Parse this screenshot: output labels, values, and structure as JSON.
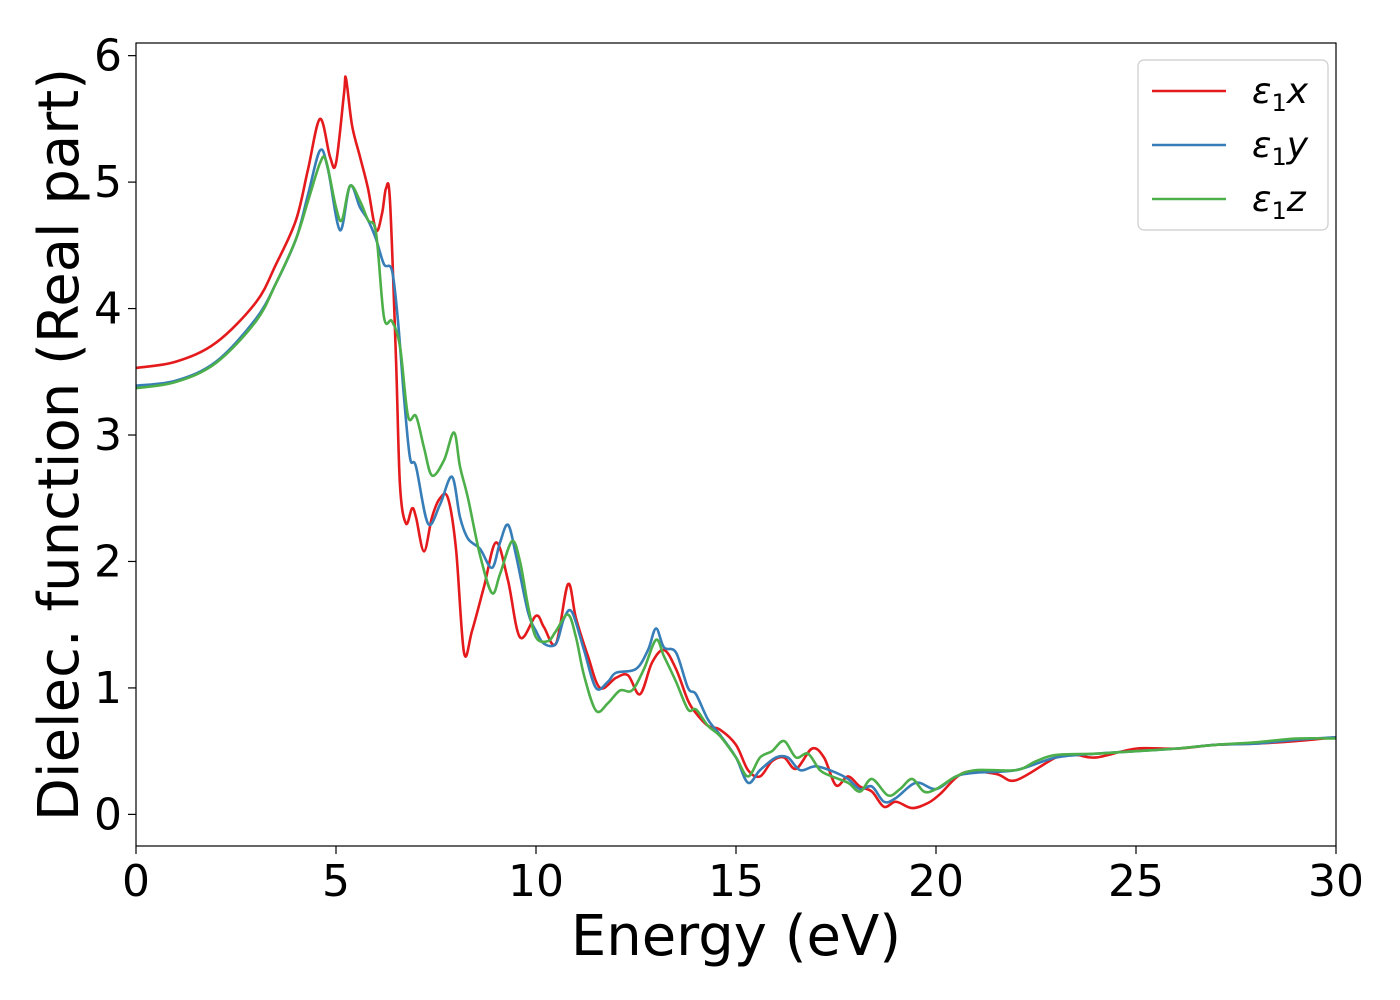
{
  "chart_data": {
    "type": "line",
    "xlabel": "Energy (eV)",
    "ylabel": "Dielec. function (Real part)",
    "xlim": [
      0,
      30
    ],
    "ylim": [
      -0.25,
      6.1
    ],
    "x_ticks": [
      0,
      5,
      10,
      15,
      20,
      25,
      30
    ],
    "y_ticks": [
      0,
      1,
      2,
      3,
      4,
      5,
      6
    ],
    "grid": false,
    "legend_position": "top-right",
    "series": [
      {
        "name": "ε₁x",
        "legend": {
          "base": "ε",
          "sub": "1",
          "axis": "x"
        },
        "color": "#e41a1c",
        "points": [
          [
            0,
            3.53
          ],
          [
            1,
            3.58
          ],
          [
            2,
            3.73
          ],
          [
            3,
            4.05
          ],
          [
            3.5,
            4.35
          ],
          [
            4,
            4.7
          ],
          [
            4.3,
            5.1
          ],
          [
            4.6,
            5.5
          ],
          [
            4.85,
            5.2
          ],
          [
            5.0,
            5.15
          ],
          [
            5.2,
            5.7
          ],
          [
            5.25,
            5.82
          ],
          [
            5.4,
            5.45
          ],
          [
            5.6,
            5.2
          ],
          [
            5.8,
            4.95
          ],
          [
            6.0,
            4.62
          ],
          [
            6.15,
            4.75
          ],
          [
            6.25,
            4.95
          ],
          [
            6.35,
            4.85
          ],
          [
            6.5,
            3.6
          ],
          [
            6.6,
            2.6
          ],
          [
            6.75,
            2.3
          ],
          [
            6.9,
            2.42
          ],
          [
            7.0,
            2.35
          ],
          [
            7.2,
            2.08
          ],
          [
            7.4,
            2.35
          ],
          [
            7.6,
            2.5
          ],
          [
            7.8,
            2.5
          ],
          [
            8.0,
            2.1
          ],
          [
            8.2,
            1.28
          ],
          [
            8.4,
            1.45
          ],
          [
            8.7,
            1.8
          ],
          [
            9.0,
            2.15
          ],
          [
            9.3,
            1.85
          ],
          [
            9.6,
            1.4
          ],
          [
            10.0,
            1.57
          ],
          [
            10.2,
            1.48
          ],
          [
            10.5,
            1.35
          ],
          [
            10.8,
            1.82
          ],
          [
            11.0,
            1.55
          ],
          [
            11.3,
            1.25
          ],
          [
            11.6,
            1.0
          ],
          [
            12.0,
            1.08
          ],
          [
            12.3,
            1.1
          ],
          [
            12.6,
            0.95
          ],
          [
            12.9,
            1.2
          ],
          [
            13.2,
            1.3
          ],
          [
            13.5,
            1.15
          ],
          [
            13.8,
            0.9
          ],
          [
            14.0,
            0.8
          ],
          [
            14.3,
            0.7
          ],
          [
            14.6,
            0.67
          ],
          [
            15.0,
            0.55
          ],
          [
            15.3,
            0.35
          ],
          [
            15.6,
            0.3
          ],
          [
            15.9,
            0.42
          ],
          [
            16.2,
            0.45
          ],
          [
            16.5,
            0.36
          ],
          [
            16.9,
            0.52
          ],
          [
            17.2,
            0.45
          ],
          [
            17.5,
            0.23
          ],
          [
            17.8,
            0.3
          ],
          [
            18.1,
            0.22
          ],
          [
            18.4,
            0.18
          ],
          [
            18.7,
            0.06
          ],
          [
            19.0,
            0.1
          ],
          [
            19.4,
            0.05
          ],
          [
            19.8,
            0.09
          ],
          [
            20.1,
            0.16
          ],
          [
            20.7,
            0.33
          ],
          [
            21.5,
            0.32
          ],
          [
            22.0,
            0.27
          ],
          [
            23.0,
            0.45
          ],
          [
            23.5,
            0.47
          ],
          [
            24.0,
            0.45
          ],
          [
            25.0,
            0.52
          ],
          [
            26.0,
            0.52
          ],
          [
            27.0,
            0.55
          ],
          [
            28.0,
            0.56
          ],
          [
            29.0,
            0.58
          ],
          [
            30.0,
            0.61
          ]
        ]
      },
      {
        "name": "ε₁y",
        "legend": {
          "base": "ε",
          "sub": "1",
          "axis": "y"
        },
        "color": "#377eb8",
        "points": [
          [
            0,
            3.39
          ],
          [
            1,
            3.43
          ],
          [
            2,
            3.58
          ],
          [
            3,
            3.92
          ],
          [
            3.5,
            4.2
          ],
          [
            4,
            4.55
          ],
          [
            4.3,
            4.9
          ],
          [
            4.6,
            5.25
          ],
          [
            4.8,
            5.1
          ],
          [
            5.1,
            4.62
          ],
          [
            5.35,
            4.97
          ],
          [
            5.6,
            4.8
          ],
          [
            5.8,
            4.7
          ],
          [
            6.0,
            4.55
          ],
          [
            6.2,
            4.35
          ],
          [
            6.4,
            4.3
          ],
          [
            6.55,
            3.9
          ],
          [
            6.7,
            3.3
          ],
          [
            6.85,
            2.82
          ],
          [
            7.0,
            2.75
          ],
          [
            7.3,
            2.3
          ],
          [
            7.6,
            2.45
          ],
          [
            7.9,
            2.67
          ],
          [
            8.1,
            2.35
          ],
          [
            8.3,
            2.18
          ],
          [
            8.6,
            2.1
          ],
          [
            8.9,
            1.95
          ],
          [
            9.1,
            2.15
          ],
          [
            9.3,
            2.29
          ],
          [
            9.5,
            2.05
          ],
          [
            9.8,
            1.6
          ],
          [
            10.0,
            1.45
          ],
          [
            10.2,
            1.35
          ],
          [
            10.5,
            1.35
          ],
          [
            10.7,
            1.55
          ],
          [
            10.9,
            1.6
          ],
          [
            11.2,
            1.3
          ],
          [
            11.5,
            1.0
          ],
          [
            11.8,
            1.05
          ],
          [
            12.0,
            1.12
          ],
          [
            12.5,
            1.15
          ],
          [
            12.8,
            1.3
          ],
          [
            13.0,
            1.47
          ],
          [
            13.2,
            1.32
          ],
          [
            13.5,
            1.28
          ],
          [
            13.8,
            1.0
          ],
          [
            14.0,
            0.95
          ],
          [
            14.3,
            0.75
          ],
          [
            14.6,
            0.63
          ],
          [
            15.0,
            0.45
          ],
          [
            15.3,
            0.25
          ],
          [
            15.6,
            0.35
          ],
          [
            16.0,
            0.45
          ],
          [
            16.3,
            0.45
          ],
          [
            16.6,
            0.35
          ],
          [
            17.0,
            0.38
          ],
          [
            17.5,
            0.33
          ],
          [
            17.8,
            0.28
          ],
          [
            18.1,
            0.2
          ],
          [
            18.4,
            0.22
          ],
          [
            18.7,
            0.1
          ],
          [
            19.0,
            0.13
          ],
          [
            19.5,
            0.25
          ],
          [
            20.0,
            0.2
          ],
          [
            20.5,
            0.3
          ],
          [
            21.0,
            0.33
          ],
          [
            22.0,
            0.35
          ],
          [
            23.0,
            0.45
          ],
          [
            24.0,
            0.48
          ],
          [
            25.0,
            0.5
          ],
          [
            26.0,
            0.52
          ],
          [
            27.0,
            0.55
          ],
          [
            28.0,
            0.56
          ],
          [
            29.0,
            0.59
          ],
          [
            30.0,
            0.61
          ]
        ]
      },
      {
        "name": "ε₁z",
        "legend": {
          "base": "ε",
          "sub": "1",
          "axis": "z"
        },
        "color": "#4daf4a",
        "points": [
          [
            0,
            3.37
          ],
          [
            1,
            3.42
          ],
          [
            2,
            3.57
          ],
          [
            3,
            3.9
          ],
          [
            3.5,
            4.2
          ],
          [
            4,
            4.55
          ],
          [
            4.3,
            4.85
          ],
          [
            4.6,
            5.15
          ],
          [
            4.75,
            5.17
          ],
          [
            5.0,
            4.8
          ],
          [
            5.15,
            4.7
          ],
          [
            5.35,
            4.97
          ],
          [
            5.6,
            4.85
          ],
          [
            5.8,
            4.7
          ],
          [
            6.0,
            4.6
          ],
          [
            6.2,
            3.93
          ],
          [
            6.4,
            3.9
          ],
          [
            6.6,
            3.7
          ],
          [
            6.8,
            3.15
          ],
          [
            7.0,
            3.15
          ],
          [
            7.2,
            2.9
          ],
          [
            7.4,
            2.68
          ],
          [
            7.7,
            2.8
          ],
          [
            7.95,
            3.02
          ],
          [
            8.1,
            2.75
          ],
          [
            8.3,
            2.5
          ],
          [
            8.6,
            2.05
          ],
          [
            8.9,
            1.75
          ],
          [
            9.1,
            1.9
          ],
          [
            9.4,
            2.16
          ],
          [
            9.6,
            2.0
          ],
          [
            9.8,
            1.65
          ],
          [
            10.0,
            1.4
          ],
          [
            10.3,
            1.37
          ],
          [
            10.5,
            1.45
          ],
          [
            10.8,
            1.58
          ],
          [
            11.0,
            1.4
          ],
          [
            11.2,
            1.1
          ],
          [
            11.5,
            0.82
          ],
          [
            11.8,
            0.88
          ],
          [
            12.1,
            0.98
          ],
          [
            12.4,
            0.98
          ],
          [
            12.7,
            1.15
          ],
          [
            13.0,
            1.38
          ],
          [
            13.2,
            1.25
          ],
          [
            13.5,
            1.05
          ],
          [
            13.8,
            0.83
          ],
          [
            14.0,
            0.83
          ],
          [
            14.3,
            0.7
          ],
          [
            14.6,
            0.62
          ],
          [
            15.0,
            0.45
          ],
          [
            15.3,
            0.3
          ],
          [
            15.6,
            0.45
          ],
          [
            15.9,
            0.5
          ],
          [
            16.2,
            0.58
          ],
          [
            16.5,
            0.45
          ],
          [
            16.8,
            0.48
          ],
          [
            17.1,
            0.35
          ],
          [
            17.4,
            0.3
          ],
          [
            17.8,
            0.25
          ],
          [
            18.1,
            0.18
          ],
          [
            18.4,
            0.28
          ],
          [
            18.8,
            0.15
          ],
          [
            19.1,
            0.2
          ],
          [
            19.4,
            0.28
          ],
          [
            19.7,
            0.18
          ],
          [
            20.0,
            0.2
          ],
          [
            20.5,
            0.3
          ],
          [
            21.0,
            0.35
          ],
          [
            22.0,
            0.35
          ],
          [
            22.5,
            0.42
          ],
          [
            23.0,
            0.47
          ],
          [
            24.0,
            0.48
          ],
          [
            25.0,
            0.5
          ],
          [
            26.0,
            0.52
          ],
          [
            27.0,
            0.55
          ],
          [
            28.0,
            0.57
          ],
          [
            29.0,
            0.6
          ],
          [
            30.0,
            0.6
          ]
        ]
      }
    ]
  }
}
